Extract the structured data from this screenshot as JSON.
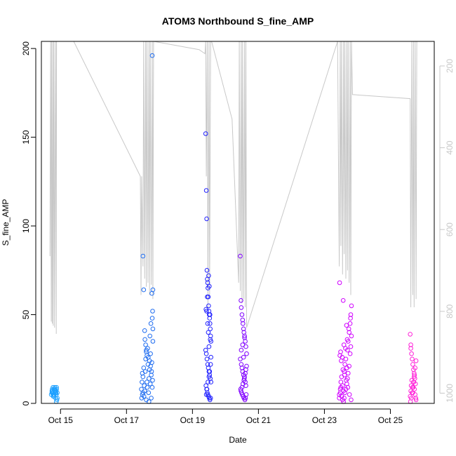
{
  "chart_data": {
    "type": "scatter",
    "title": "ATOM3 Northbound S_fine_AMP",
    "xlabel": "Date",
    "ylabel": "S_fine_AMP",
    "ylim": [
      0,
      204
    ],
    "yticks": [
      0,
      50,
      100,
      150,
      200
    ],
    "xlim": [
      14.42,
      26.33
    ],
    "xticks": [
      {
        "value": 15,
        "label": "Oct 15"
      },
      {
        "value": 17,
        "label": "Oct 17"
      },
      {
        "value": 19,
        "label": "Oct 19"
      },
      {
        "value": 21,
        "label": "Oct 21"
      },
      {
        "value": 23,
        "label": "Oct 23"
      },
      {
        "value": 25,
        "label": "Oct 25"
      }
    ],
    "y2_axis": {
      "reversed": true,
      "lim": [
        1025,
        140
      ],
      "ticks": [
        200,
        400,
        600,
        800,
        1000
      ],
      "color": "#c8c8c8"
    },
    "grid": false,
    "legend": "none",
    "point_colors": [
      "#1ea0ff",
      "#1e6cf0",
      "#2020ff",
      "#8000ff",
      "#d000ff",
      "#ff20d8"
    ],
    "series": [
      {
        "color": "#1ea0ff",
        "x": [
          14.72,
          14.74,
          14.75,
          14.76,
          14.77,
          14.78,
          14.79,
          14.8,
          14.81,
          14.82,
          14.83,
          14.84,
          14.85,
          14.86,
          14.87,
          14.88,
          14.89,
          14.9,
          14.74,
          14.78,
          14.8,
          14.82,
          14.86,
          14.88,
          14.9,
          14.76,
          14.84,
          14.87,
          14.79,
          14.83
        ],
        "y": [
          5,
          6,
          8,
          7,
          9,
          4,
          6,
          8,
          5,
          7,
          9,
          6,
          3,
          7,
          5,
          8,
          2,
          6,
          7,
          5,
          4,
          8,
          6,
          9,
          3,
          6,
          7,
          1,
          5,
          8
        ]
      },
      {
        "color": "#1e6cf0",
        "x": [
          17.45,
          17.47,
          17.48,
          17.5,
          17.52,
          17.54,
          17.55,
          17.57,
          17.58,
          17.6,
          17.62,
          17.63,
          17.65,
          17.67,
          17.68,
          17.7,
          17.72,
          17.73,
          17.75,
          17.77,
          17.78,
          17.8,
          17.8,
          17.79,
          17.78,
          17.5,
          17.52,
          17.55,
          17.56,
          17.6,
          17.62,
          17.66,
          17.7,
          17.73,
          17.76,
          17.79,
          17.5,
          17.53,
          17.48,
          17.58,
          17.64,
          17.71,
          17.74,
          17.77,
          17.8,
          17.46,
          17.6,
          17.68,
          17.75,
          17.78
        ],
        "y": [
          8,
          12,
          5,
          15,
          20,
          10,
          7,
          18,
          25,
          30,
          12,
          9,
          22,
          6,
          14,
          19,
          11,
          28,
          16,
          23,
          9,
          35,
          42,
          52,
          48,
          83,
          64,
          41,
          36,
          29,
          27,
          26,
          24,
          21,
          18,
          13,
          6,
          4,
          17,
          33,
          31,
          38,
          45,
          62,
          64,
          3,
          2,
          1,
          3,
          196
        ]
      },
      {
        "color": "#2020ff",
        "x": [
          19.4,
          19.42,
          19.43,
          19.44,
          19.45,
          19.46,
          19.47,
          19.48,
          19.49,
          19.5,
          19.51,
          19.52,
          19.53,
          19.54,
          19.55,
          19.56,
          19.4,
          19.42,
          19.44,
          19.46,
          19.48,
          19.5,
          19.52,
          19.54,
          19.56,
          19.41,
          19.43,
          19.45,
          19.47,
          19.49,
          19.51,
          19.53,
          19.55,
          19.42,
          19.44,
          19.47,
          19.5,
          19.52,
          19.55,
          19.43,
          19.46,
          19.49,
          19.51,
          19.53,
          19.45,
          19.48,
          19.5,
          19.54,
          19.41,
          19.56
        ],
        "y": [
          152,
          120,
          104,
          75,
          70,
          68,
          65,
          60,
          55,
          52,
          50,
          48,
          45,
          42,
          38,
          35,
          30,
          28,
          25,
          22,
          20,
          18,
          16,
          14,
          12,
          10,
          8,
          6,
          5,
          4,
          3,
          2,
          3,
          5,
          8,
          12,
          15,
          18,
          22,
          52,
          45,
          72,
          66,
          50,
          60,
          40,
          32,
          36,
          53,
          26
        ]
      },
      {
        "color": "#8000ff",
        "x": [
          20.45,
          20.47,
          20.48,
          20.5,
          20.52,
          20.53,
          20.55,
          20.56,
          20.58,
          20.6,
          20.62,
          20.64,
          20.45,
          20.48,
          20.5,
          20.52,
          20.55,
          20.57,
          20.6,
          20.62,
          20.46,
          20.49,
          20.51,
          20.54,
          20.56,
          20.59,
          20.61,
          20.63,
          20.47,
          20.5,
          20.53,
          20.56,
          20.58,
          20.6,
          20.62,
          20.64,
          20.48,
          20.52,
          20.55,
          20.58
        ],
        "y": [
          83,
          58,
          54,
          50,
          47,
          45,
          42,
          40,
          38,
          35,
          32,
          28,
          25,
          22,
          20,
          18,
          16,
          14,
          12,
          10,
          8,
          6,
          5,
          4,
          3,
          2,
          3,
          5,
          7,
          9,
          11,
          13,
          15,
          17,
          19,
          21,
          30,
          33,
          26,
          37
        ]
      },
      {
        "color": "#d000ff",
        "x": [
          23.45,
          23.48,
          23.5,
          23.52,
          23.55,
          23.58,
          23.6,
          23.62,
          23.65,
          23.68,
          23.7,
          23.72,
          23.75,
          23.78,
          23.8,
          23.82,
          23.45,
          23.48,
          23.5,
          23.52,
          23.55,
          23.58,
          23.6,
          23.62,
          23.65,
          23.68,
          23.7,
          23.72,
          23.75,
          23.78,
          23.8,
          23.82,
          23.47,
          23.51,
          23.56,
          23.61,
          23.66,
          23.71,
          23.76,
          23.81,
          23.49,
          23.54,
          23.59,
          23.64,
          23.69,
          23.74,
          23.79,
          23.46,
          23.57,
          23.67
        ],
        "y": [
          5,
          8,
          12,
          15,
          10,
          7,
          18,
          22,
          25,
          20,
          30,
          35,
          40,
          45,
          50,
          55,
          3,
          6,
          9,
          4,
          2,
          1,
          3,
          6,
          8,
          11,
          14,
          17,
          21,
          28,
          32,
          38,
          27,
          24,
          19,
          16,
          13,
          9,
          5,
          2,
          29,
          26,
          33,
          31,
          36,
          42,
          48,
          68,
          58,
          44
        ]
      },
      {
        "color": "#ff20d8",
        "x": [
          25.6,
          25.62,
          25.63,
          25.65,
          25.67,
          25.68,
          25.7,
          25.72,
          25.73,
          25.75,
          25.77,
          25.78,
          25.6,
          25.62,
          25.64,
          25.66,
          25.68,
          25.7,
          25.72,
          25.74,
          25.76,
          25.61,
          25.63,
          25.66,
          25.69,
          25.71,
          25.73,
          25.75,
          25.78,
          25.62
        ],
        "y": [
          4,
          7,
          10,
          13,
          9,
          6,
          12,
          15,
          8,
          5,
          3,
          2,
          39,
          33,
          28,
          25,
          22,
          19,
          17,
          14,
          11,
          1,
          3,
          6,
          9,
          12,
          16,
          20,
          24,
          31
        ]
      }
    ],
    "depth_line": {
      "color": "#c8c8c8",
      "x": [
        14.68,
        14.7,
        14.72,
        14.73,
        14.75,
        14.77,
        14.78,
        14.8,
        14.82,
        14.85,
        14.87,
        14.88,
        14.9,
        14.92,
        15.4,
        17.42,
        17.44,
        17.46,
        17.5,
        17.52,
        17.55,
        17.58,
        17.6,
        17.62,
        17.65,
        17.68,
        17.7,
        17.72,
        17.75,
        17.78,
        17.8,
        17.82,
        19.2,
        19.38,
        19.4,
        19.42,
        19.45,
        19.47,
        19.5,
        19.52,
        19.55,
        19.58,
        20.2,
        20.4,
        20.42,
        20.45,
        20.48,
        20.5,
        20.52,
        20.55,
        20.58,
        20.6,
        20.62,
        20.64,
        23.4,
        23.45,
        23.48,
        23.5,
        23.52,
        23.55,
        23.58,
        23.6,
        23.62,
        23.65,
        23.68,
        23.7,
        23.72,
        23.75,
        23.78,
        23.8,
        23.82,
        23.85,
        25.6,
        25.62,
        25.65,
        25.68,
        25.7,
        25.72,
        25.75,
        25.78,
        25.8
      ],
      "y": [
        665,
        140,
        825,
        140,
        830,
        140,
        835,
        140,
        840,
        140,
        855,
        140,
        140,
        140,
        140,
        470,
        760,
        470,
        690,
        140,
        720,
        140,
        740,
        140,
        730,
        140,
        760,
        140,
        735,
        140,
        770,
        140,
        160,
        170,
        140,
        470,
        140,
        790,
        140,
        760,
        140,
        140,
        330,
        730,
        140,
        750,
        140,
        780,
        140,
        770,
        140,
        790,
        140,
        840,
        140,
        690,
        140,
        640,
        140,
        710,
        140,
        660,
        140,
        720,
        140,
        700,
        140,
        730,
        140,
        760,
        140,
        270,
        280,
        790,
        140,
        760,
        140,
        790,
        140,
        770,
        140
      ]
    }
  }
}
